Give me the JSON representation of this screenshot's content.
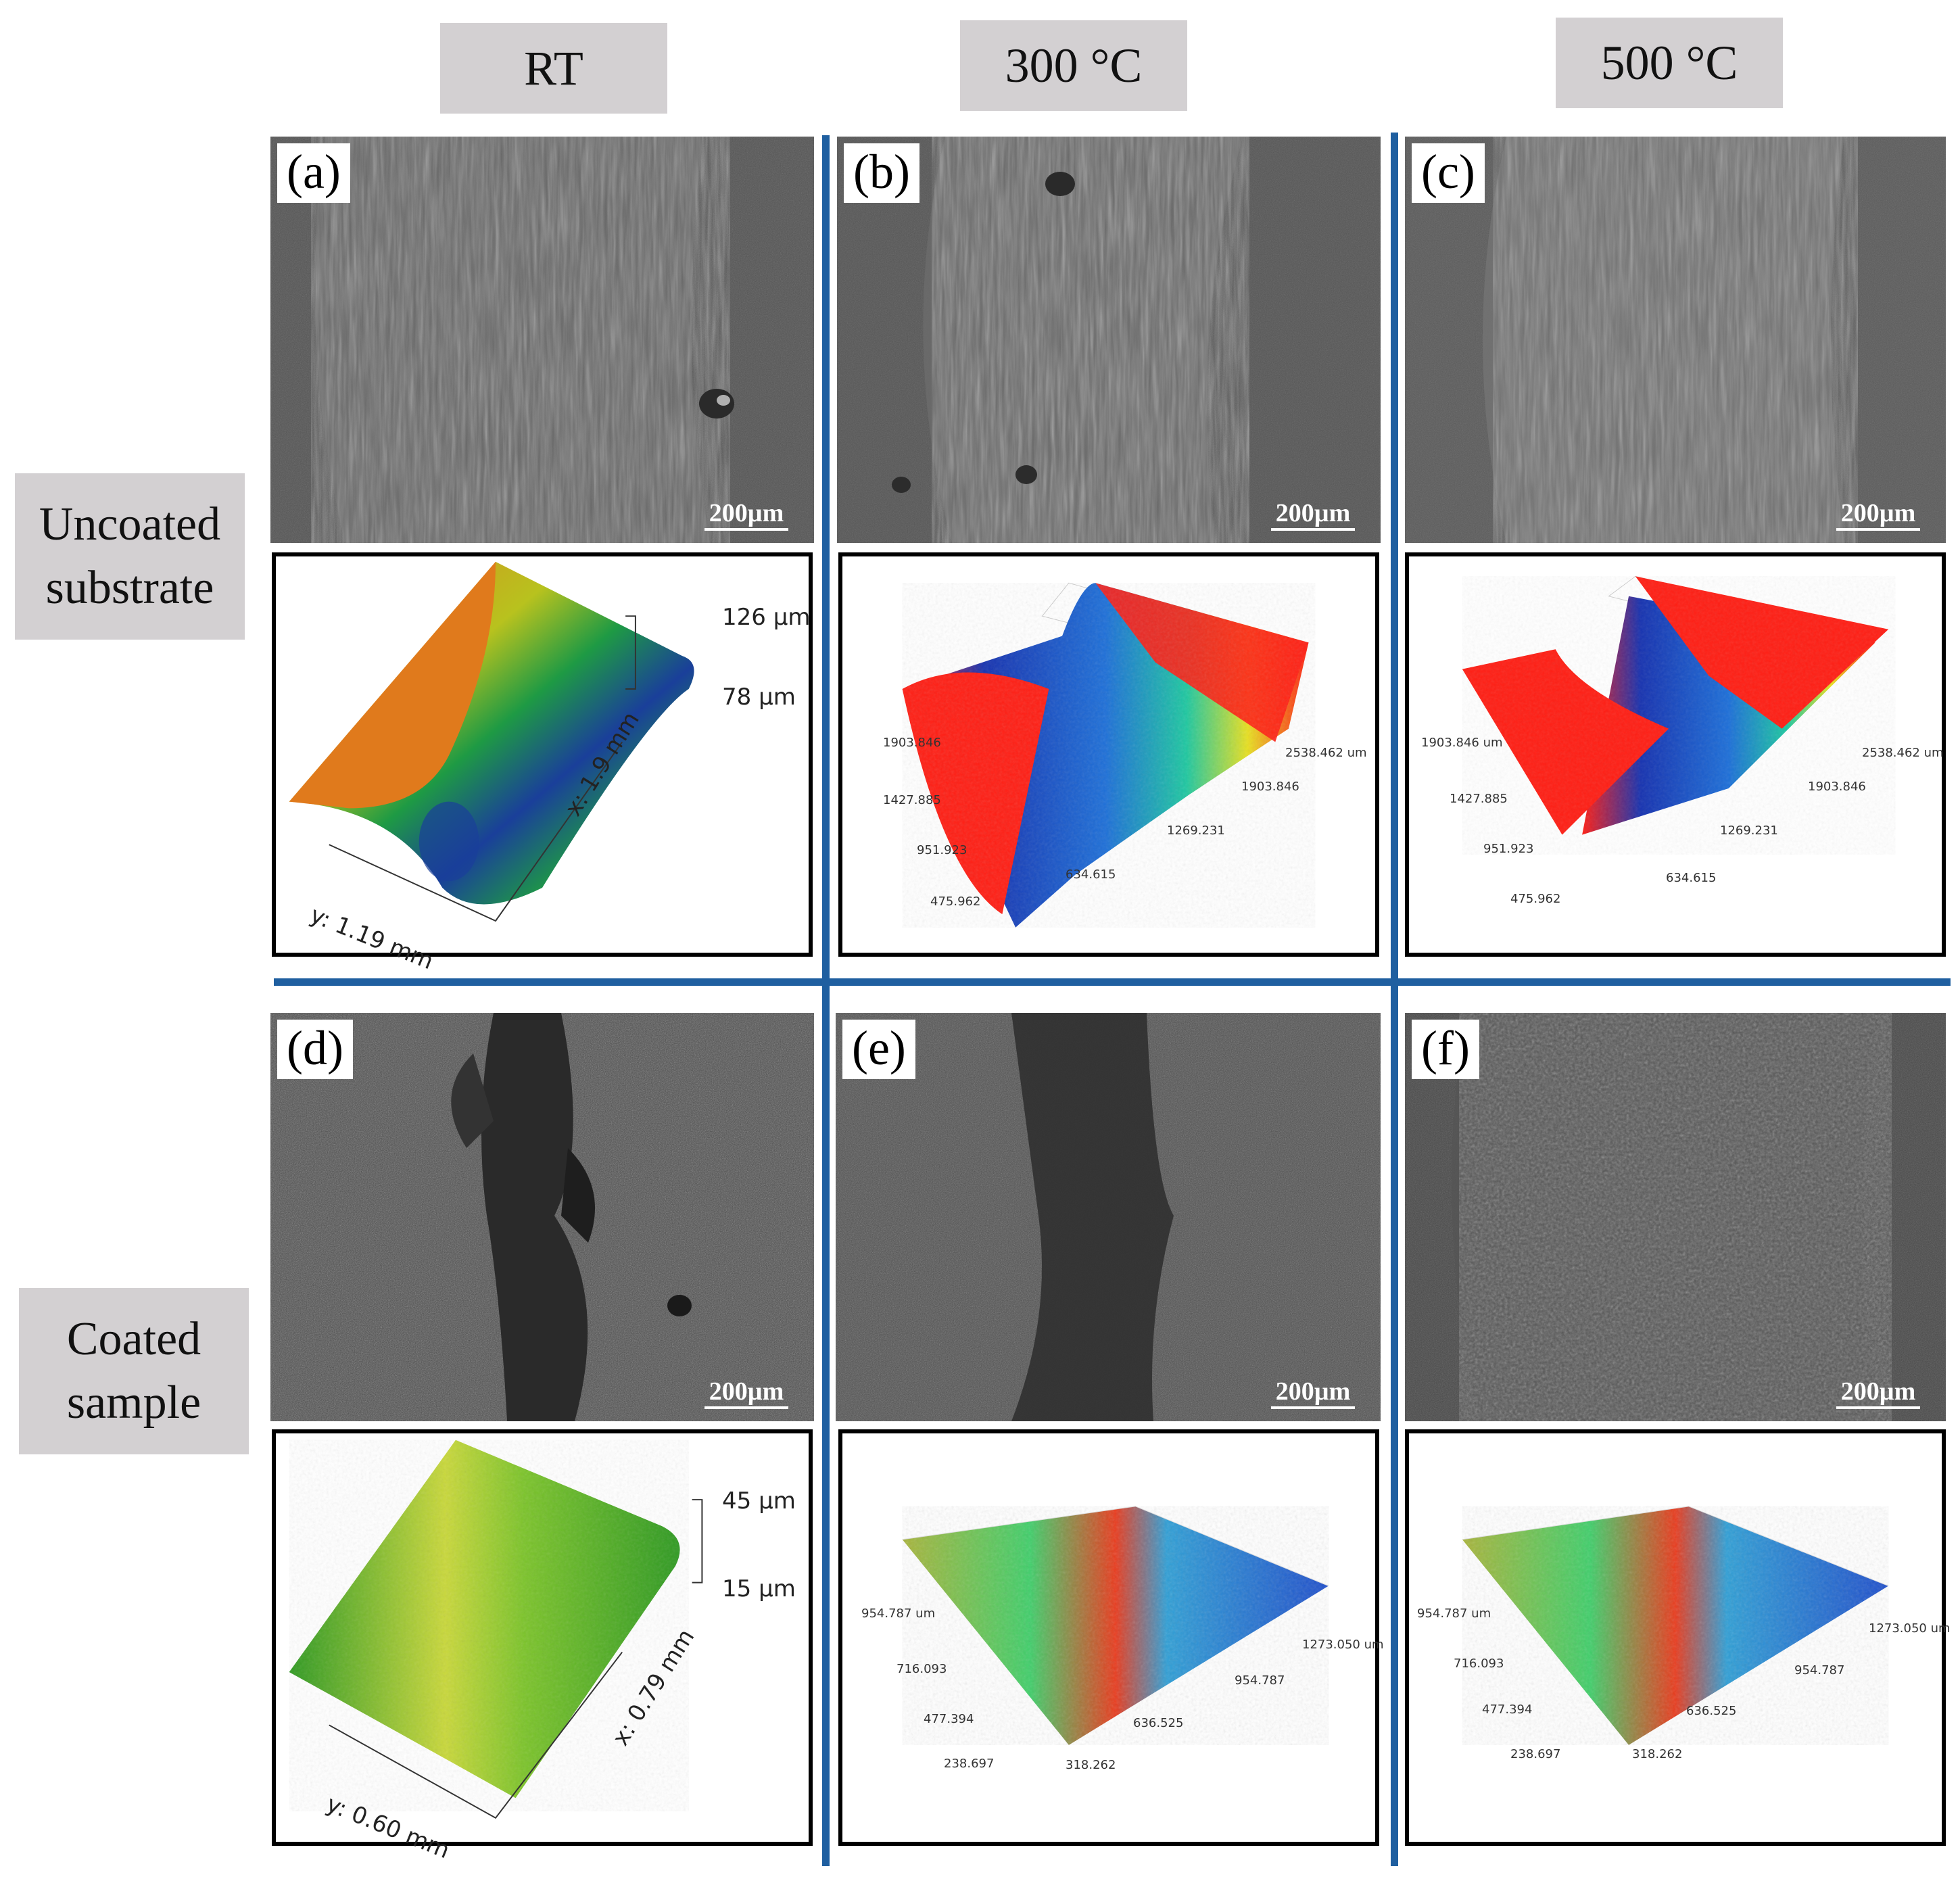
{
  "column_headers": [
    "RT",
    "300 °C",
    "500 °C"
  ],
  "row_headers": [
    {
      "line1": "Uncoated",
      "line2": "substrate"
    },
    {
      "line1": "Coated",
      "line2": "sample"
    }
  ],
  "panels": {
    "a": {
      "letter": "(a)",
      "scale_bar": "200µm"
    },
    "b": {
      "letter": "(b)",
      "scale_bar": "200µm"
    },
    "c": {
      "letter": "(c)",
      "scale_bar": "200µm"
    },
    "d": {
      "letter": "(d)",
      "scale_bar": "200µm"
    },
    "e": {
      "letter": "(e)",
      "scale_bar": "200µm"
    },
    "f": {
      "letter": "(f)",
      "scale_bar": "200µm"
    }
  },
  "profiles": {
    "a": {
      "z_top": "126 μm",
      "z_bottom": "78 μm",
      "x_axis": "x: 1.9 mm",
      "y_axis": "y: 1.19 mm"
    },
    "b": {
      "ticks_left": [
        "1903.846",
        "1427.885",
        "951.923",
        "475.962"
      ],
      "ticks_right": [
        "2538.462 um",
        "1903.846",
        "1269.231",
        "634.615"
      ]
    },
    "c": {
      "ticks_left": [
        "1903.846 um",
        "1427.885",
        "951.923",
        "475.962"
      ],
      "ticks_right": [
        "2538.462 um",
        "1903.846",
        "1269.231",
        "634.615"
      ]
    },
    "d": {
      "z_top": "45 μm",
      "z_bottom": "15 μm",
      "x_axis": "x: 0.79 mm",
      "y_axis": "y: 0.60 mm"
    },
    "e": {
      "ticks_left": [
        "954.787 um",
        "716.093",
        "477.394",
        "238.697"
      ],
      "ticks_right": [
        "1273.050 um",
        "954.787",
        "636.525",
        "318.262"
      ]
    },
    "f": {
      "ticks_left": [
        "954.787 um",
        "716.093",
        "477.394",
        "238.697"
      ],
      "ticks_right": [
        "1273.050 um",
        "954.787",
        "636.525",
        "318.262"
      ]
    }
  },
  "colors": {
    "divider": "#1f5fa0",
    "label_box": "#d3d0d2"
  }
}
